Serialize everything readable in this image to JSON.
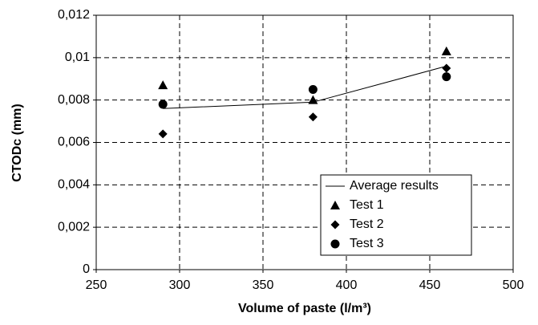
{
  "chart_data": {
    "type": "scatter",
    "x_label": "Volume of paste (l/m³)",
    "y_label": "CTODc (mm)",
    "xlim": [
      250,
      500
    ],
    "xticks": [
      250,
      300,
      350,
      400,
      450,
      500
    ],
    "ylim": [
      0,
      0.012
    ],
    "yticks": [
      0,
      {
        "value": 0.002,
        "label": "0,002"
      },
      {
        "value": 0.004,
        "label": "0,004"
      },
      {
        "value": 0.006,
        "label": "0,006"
      },
      {
        "value": 0.008,
        "label": "0,008"
      },
      {
        "value": 0.01,
        "label": "0,01"
      },
      {
        "value": 0.012,
        "label": "0,012"
      }
    ],
    "grid": true,
    "legend": "lower right",
    "x": [
      290,
      380,
      460
    ],
    "series": [
      {
        "name": "Average results",
        "color": "#000000",
        "marker": "line",
        "values": [
          0.0076,
          0.0079,
          0.0096
        ]
      },
      {
        "name": "Test 1",
        "color": "#000000",
        "marker": "triangle",
        "values": [
          0.0087,
          0.008,
          0.0103
        ]
      },
      {
        "name": "Test 2",
        "color": "#000000",
        "marker": "diamond",
        "values": [
          0.0064,
          0.0072,
          0.0095
        ]
      },
      {
        "name": "Test 3",
        "color": "#000000",
        "marker": "circle",
        "values": [
          0.0078,
          0.0085,
          0.0091
        ]
      }
    ]
  }
}
